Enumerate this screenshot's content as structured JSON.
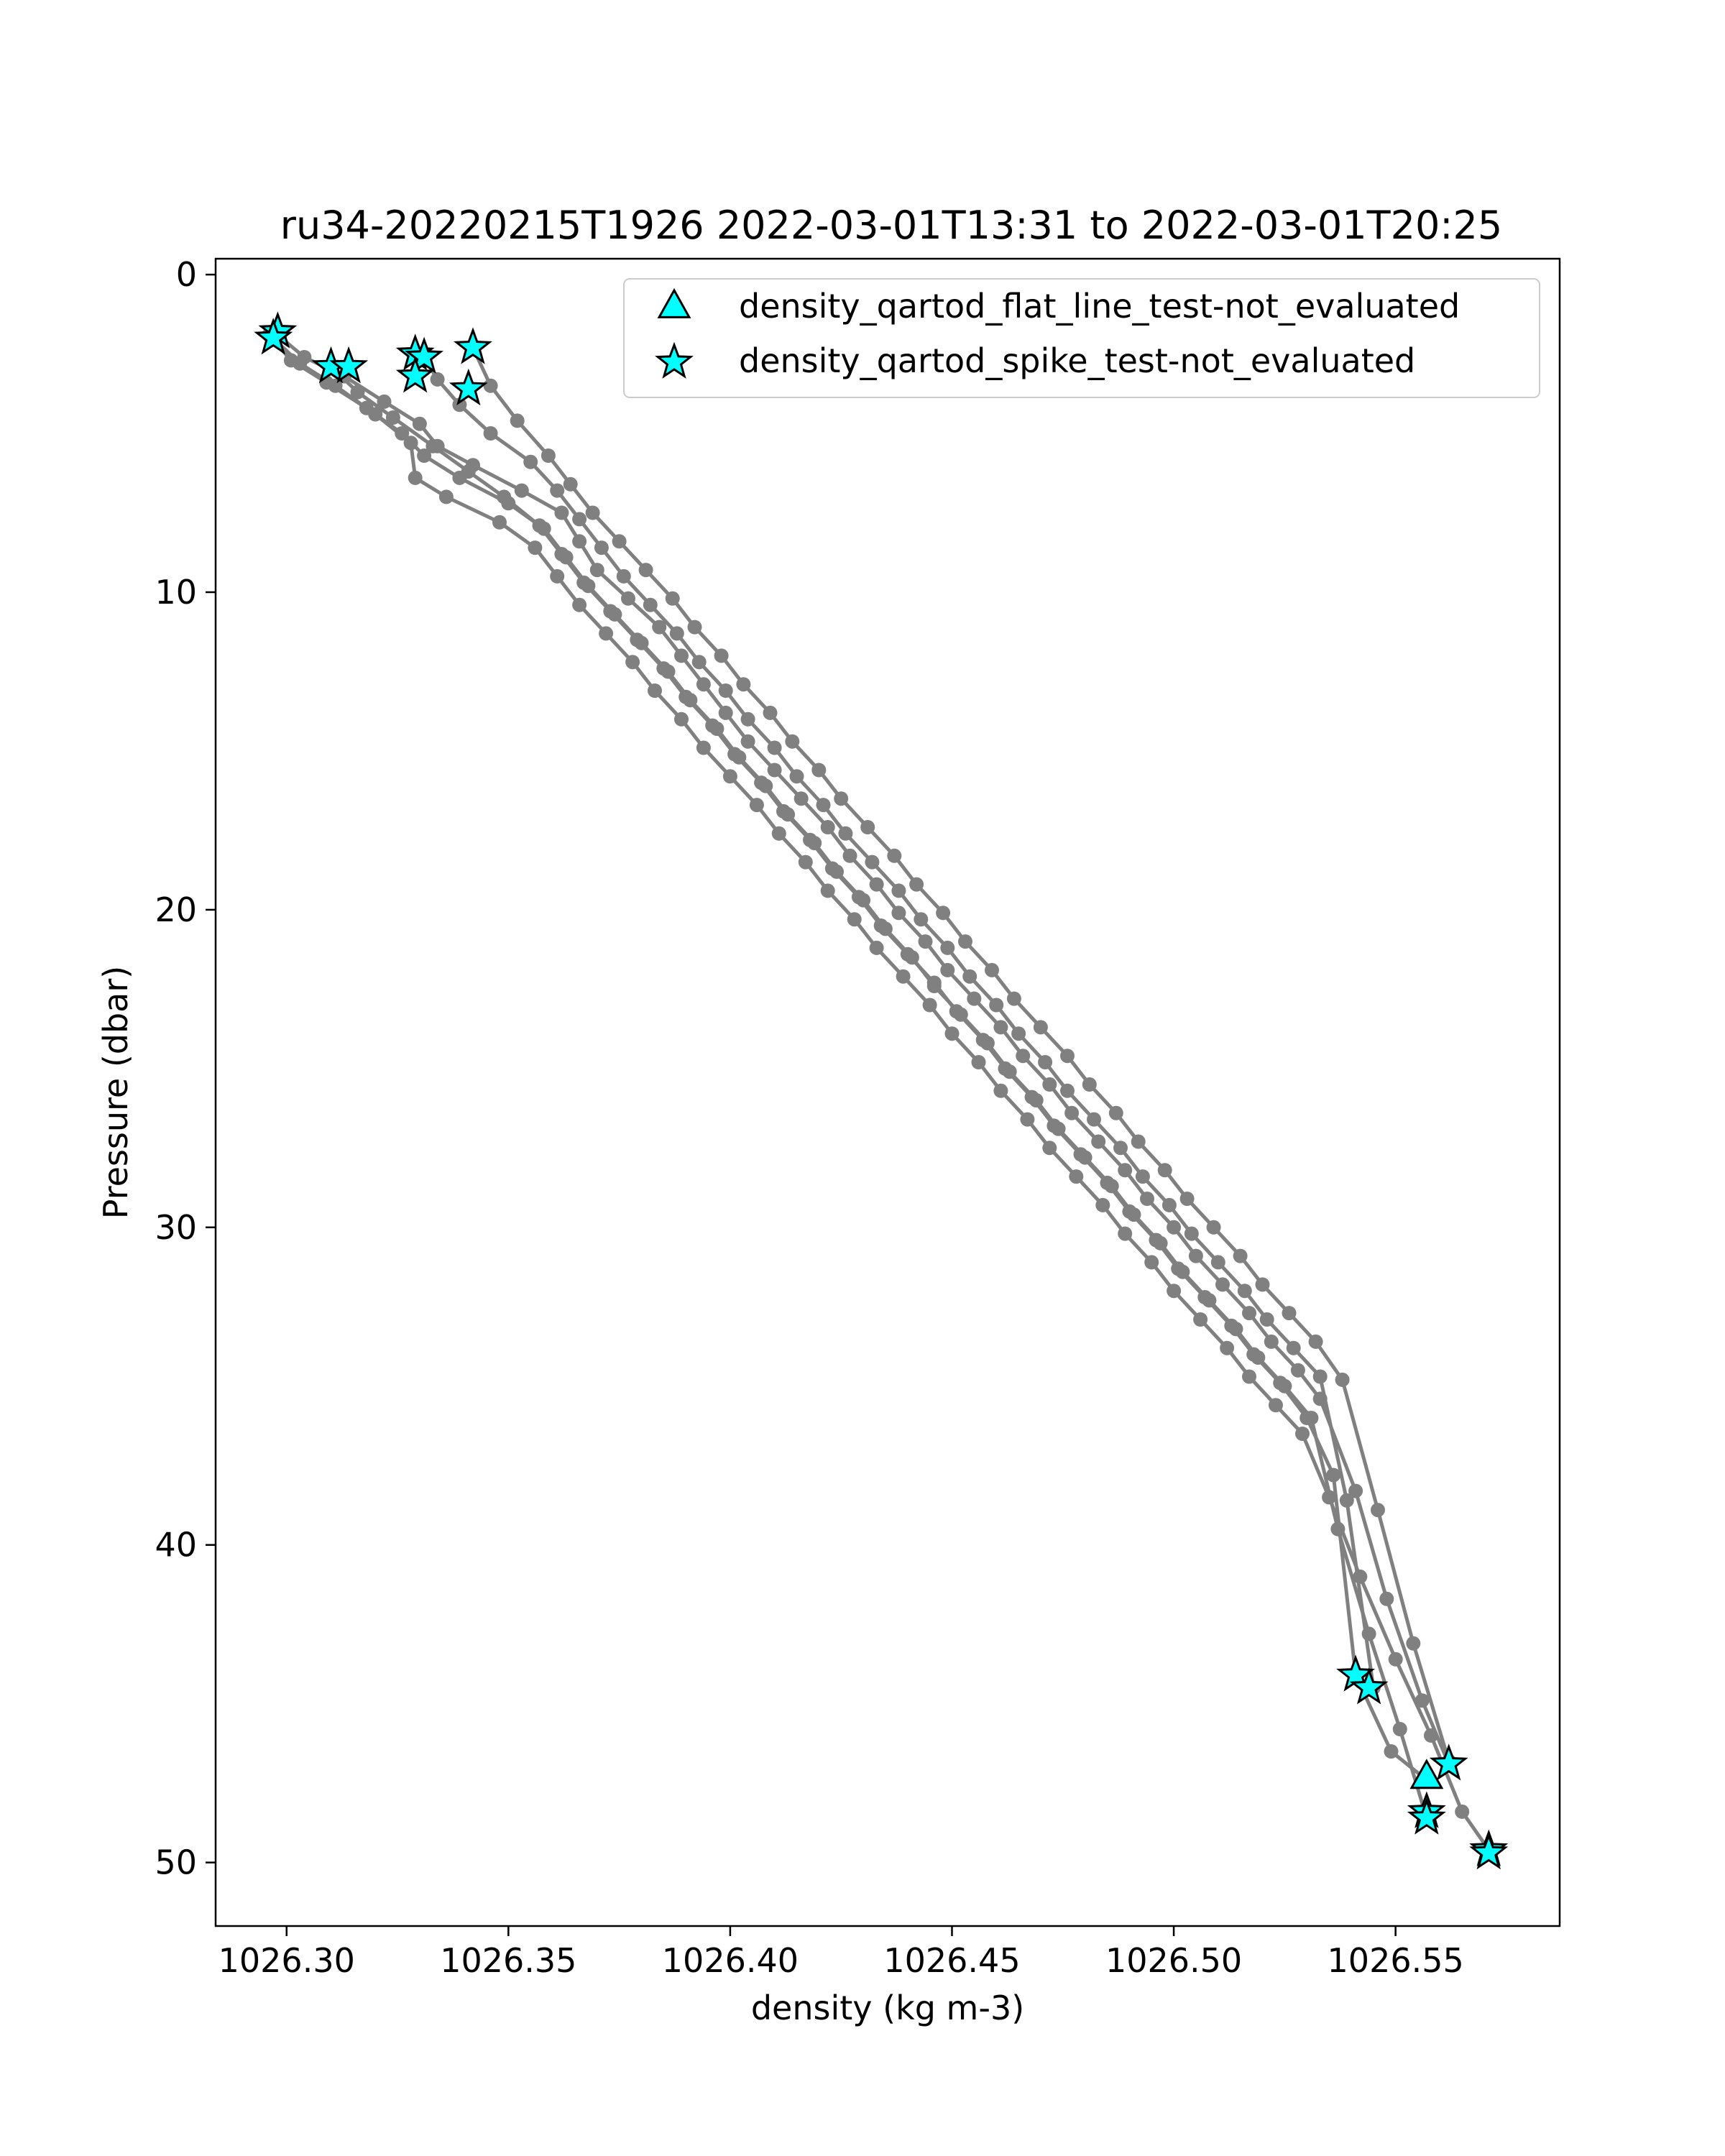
{
  "chart_data": {
    "type": "scatter",
    "title": "ru34-20220215T1926 2022-03-01T13:31 to 2022-03-01T20:25",
    "xlabel": "density (kg m-3)",
    "ylabel": "Pressure (dbar)",
    "xlim": [
      1026.284,
      1026.587
    ],
    "ylim": [
      52,
      -0.5
    ],
    "y_inverted": true,
    "grid": false,
    "legend_position": "top-right",
    "x_ticks": [
      1026.3,
      1026.35,
      1026.4,
      1026.45,
      1026.5,
      1026.55
    ],
    "x_tick_labels": [
      "1026.30",
      "1026.35",
      "1026.40",
      "1026.45",
      "1026.50",
      "1026.55"
    ],
    "y_ticks": [
      0,
      10,
      20,
      30,
      40,
      50
    ],
    "y_tick_labels": [
      "0",
      "10",
      "20",
      "30",
      "40",
      "50"
    ],
    "profile_color": "#808080",
    "flag_color": "#00ffff",
    "profiles": [
      {
        "x": [
          1026.298,
          1026.304,
          1026.313,
          1026.322,
          1026.33,
          1026.334,
          1026.342,
          1026.353,
          1026.362,
          1026.366,
          1026.37,
          1026.377,
          1026.384,
          1026.389,
          1026.394,
          1026.399,
          1026.404,
          1026.41,
          1026.416,
          1026.422,
          1026.427,
          1026.433,
          1026.438,
          1026.444,
          1026.449,
          1026.455,
          1026.461,
          1026.466,
          1026.472,
          1026.477,
          1026.483,
          1026.489,
          1026.494,
          1026.5,
          1026.505,
          1026.511,
          1026.517,
          1026.522,
          1026.528,
          1026.533,
          1026.541,
          1026.548,
          1026.556,
          1026.562
        ],
        "y": [
          1.9,
          2.6,
          3.2,
          4.0,
          4.7,
          5.4,
          6.0,
          6.8,
          7.5,
          8.4,
          9.3,
          10.2,
          11.1,
          12.0,
          12.9,
          13.8,
          14.7,
          15.6,
          16.5,
          17.4,
          18.3,
          19.2,
          20.1,
          21.0,
          21.9,
          22.8,
          23.7,
          24.6,
          25.5,
          26.4,
          27.3,
          28.2,
          29.1,
          30.0,
          30.9,
          31.8,
          32.7,
          33.6,
          34.5,
          35.4,
          38.3,
          41.7,
          44.9,
          46.9
        ]
      },
      {
        "x": [
          1026.296,
          1026.301,
          1026.309,
          1026.318,
          1026.326,
          1026.331,
          1026.339,
          1026.35,
          1026.358,
          1026.363,
          1026.368,
          1026.374,
          1026.38,
          1026.386,
          1026.391,
          1026.397,
          1026.402,
          1026.408,
          1026.413,
          1026.419,
          1026.424,
          1026.43,
          1026.435,
          1026.441,
          1026.446,
          1026.452,
          1026.458,
          1026.463,
          1026.469,
          1026.474,
          1026.48,
          1026.486,
          1026.491,
          1026.497,
          1026.502,
          1026.508,
          1026.514,
          1026.519,
          1026.525,
          1026.531,
          1026.537,
          1026.544,
          1026.551,
          1026.557
        ],
        "y": [
          1.9,
          2.7,
          3.4,
          4.2,
          5.0,
          5.7,
          6.4,
          7.2,
          8.0,
          8.9,
          9.8,
          10.7,
          11.6,
          12.5,
          13.4,
          14.3,
          15.2,
          16.1,
          17.0,
          17.9,
          18.8,
          19.7,
          20.6,
          21.5,
          22.4,
          23.3,
          24.2,
          25.1,
          26.0,
          26.9,
          27.8,
          28.7,
          29.6,
          30.5,
          31.4,
          32.3,
          33.2,
          34.1,
          35.0,
          36.0,
          39.5,
          42.8,
          45.8,
          48.6
        ]
      },
      {
        "x": [
          1026.297,
          1026.303,
          1026.311,
          1026.32,
          1026.328,
          1026.329,
          1026.336,
          1026.348,
          1026.356,
          1026.361,
          1026.366,
          1026.372,
          1026.378,
          1026.383,
          1026.389,
          1026.394,
          1026.4,
          1026.406,
          1026.411,
          1026.417,
          1026.422,
          1026.428,
          1026.433,
          1026.439,
          1026.445,
          1026.45,
          1026.456,
          1026.461,
          1026.467,
          1026.472,
          1026.478,
          1026.484,
          1026.489,
          1026.495,
          1026.5,
          1026.506,
          1026.512,
          1026.517,
          1026.523,
          1026.529,
          1026.535,
          1026.542,
          1026.55,
          1026.558,
          1026.565,
          1026.571
        ],
        "y": [
          2.0,
          2.8,
          3.5,
          4.4,
          5.3,
          6.4,
          7.0,
          7.8,
          8.6,
          9.5,
          10.4,
          11.3,
          12.2,
          13.1,
          14.0,
          14.9,
          15.8,
          16.7,
          17.6,
          18.5,
          19.4,
          20.3,
          21.2,
          22.1,
          23.0,
          23.9,
          24.8,
          25.7,
          26.6,
          27.5,
          28.4,
          29.3,
          30.2,
          31.1,
          32.0,
          32.9,
          33.8,
          34.7,
          35.6,
          36.5,
          38.5,
          41.0,
          43.6,
          46.0,
          48.4,
          49.6
        ]
      },
      {
        "x": [
          1026.342,
          1026.346,
          1026.352,
          1026.359,
          1026.364,
          1026.369,
          1026.375,
          1026.381,
          1026.387,
          1026.392,
          1026.398,
          1026.403,
          1026.409,
          1026.414,
          1026.42,
          1026.425,
          1026.431,
          1026.437,
          1026.442,
          1026.448,
          1026.453,
          1026.459,
          1026.464,
          1026.47,
          1026.476,
          1026.481,
          1026.487,
          1026.492,
          1026.498,
          1026.503,
          1026.509,
          1026.515,
          1026.52,
          1026.526,
          1026.532,
          1026.538,
          1026.546,
          1026.554,
          1026.562
        ],
        "y": [
          2.3,
          3.5,
          4.6,
          5.7,
          6.6,
          7.5,
          8.4,
          9.3,
          10.2,
          11.1,
          12.0,
          12.9,
          13.8,
          14.7,
          15.6,
          16.5,
          17.4,
          18.3,
          19.2,
          20.1,
          21.0,
          21.9,
          22.8,
          23.7,
          24.6,
          25.5,
          26.4,
          27.3,
          28.2,
          29.1,
          30.0,
          30.9,
          31.8,
          32.7,
          33.6,
          34.8,
          38.9,
          43.1,
          46.8
        ]
      },
      {
        "x": [
          1026.31,
          1026.316,
          1026.324,
          1026.333,
          1026.341,
          1026.349,
          1026.357,
          1026.362,
          1026.367,
          1026.373,
          1026.379,
          1026.385,
          1026.39,
          1026.396,
          1026.401,
          1026.407,
          1026.412,
          1026.418,
          1026.423,
          1026.429,
          1026.434,
          1026.44,
          1026.446,
          1026.451,
          1026.457,
          1026.462,
          1026.468,
          1026.473,
          1026.479,
          1026.485,
          1026.49,
          1026.496,
          1026.501,
          1026.507,
          1026.513,
          1026.518,
          1026.524,
          1026.53,
          1026.536,
          1026.541,
          1026.549,
          1026.557
        ],
        "y": [
          2.9,
          3.7,
          4.5,
          5.4,
          6.2,
          7.0,
          7.9,
          8.8,
          9.7,
          10.6,
          11.5,
          12.4,
          13.3,
          14.2,
          15.1,
          16.0,
          16.9,
          17.8,
          18.7,
          19.6,
          20.5,
          21.4,
          22.3,
          23.2,
          24.1,
          25.0,
          25.9,
          26.8,
          27.7,
          28.6,
          29.5,
          30.4,
          31.3,
          32.2,
          33.1,
          34.0,
          34.9,
          36.0,
          37.8,
          44.1,
          46.5,
          47.4
        ]
      },
      {
        "x": [
          1026.331,
          1026.334,
          1026.339,
          1026.346,
          1026.355,
          1026.361,
          1026.366,
          1026.371,
          1026.376,
          1026.382,
          1026.388,
          1026.393,
          1026.399,
          1026.404,
          1026.41,
          1026.415,
          1026.421,
          1026.426,
          1026.432,
          1026.438,
          1026.443,
          1026.449,
          1026.454,
          1026.46,
          1026.465,
          1026.471,
          1026.476,
          1026.482,
          1026.488,
          1026.493,
          1026.499,
          1026.504,
          1026.51,
          1026.516,
          1026.521,
          1026.527,
          1026.533,
          1026.539,
          1026.545
        ],
        "y": [
          2.6,
          3.3,
          4.1,
          5.0,
          5.9,
          6.8,
          7.7,
          8.6,
          9.5,
          10.4,
          11.3,
          12.2,
          13.1,
          14.0,
          14.9,
          15.8,
          16.7,
          17.6,
          18.5,
          19.4,
          20.3,
          21.2,
          22.1,
          23.0,
          23.9,
          24.8,
          25.7,
          26.6,
          27.5,
          28.4,
          29.3,
          30.2,
          31.1,
          32.0,
          32.9,
          33.8,
          34.7,
          38.6,
          44.5
        ]
      }
    ],
    "series": [
      {
        "name": "density_qartod_flat_line_test-not_evaluated",
        "marker": "triangle",
        "x": [
          1026.557
        ],
        "y": [
          47.3
        ]
      },
      {
        "name": "density_qartod_spike_test-not_evaluated",
        "marker": "star",
        "x": [
          1026.298,
          1026.297,
          1026.31,
          1026.314,
          1026.329,
          1026.331,
          1026.329,
          1026.342,
          1026.341,
          1026.541,
          1026.544,
          1026.562,
          1026.557,
          1026.557,
          1026.571,
          1026.571
        ],
        "y": [
          1.8,
          2.0,
          2.9,
          2.9,
          2.5,
          2.6,
          3.2,
          2.3,
          3.6,
          44.1,
          44.5,
          46.9,
          48.4,
          48.6,
          49.6,
          49.7
        ]
      }
    ]
  }
}
